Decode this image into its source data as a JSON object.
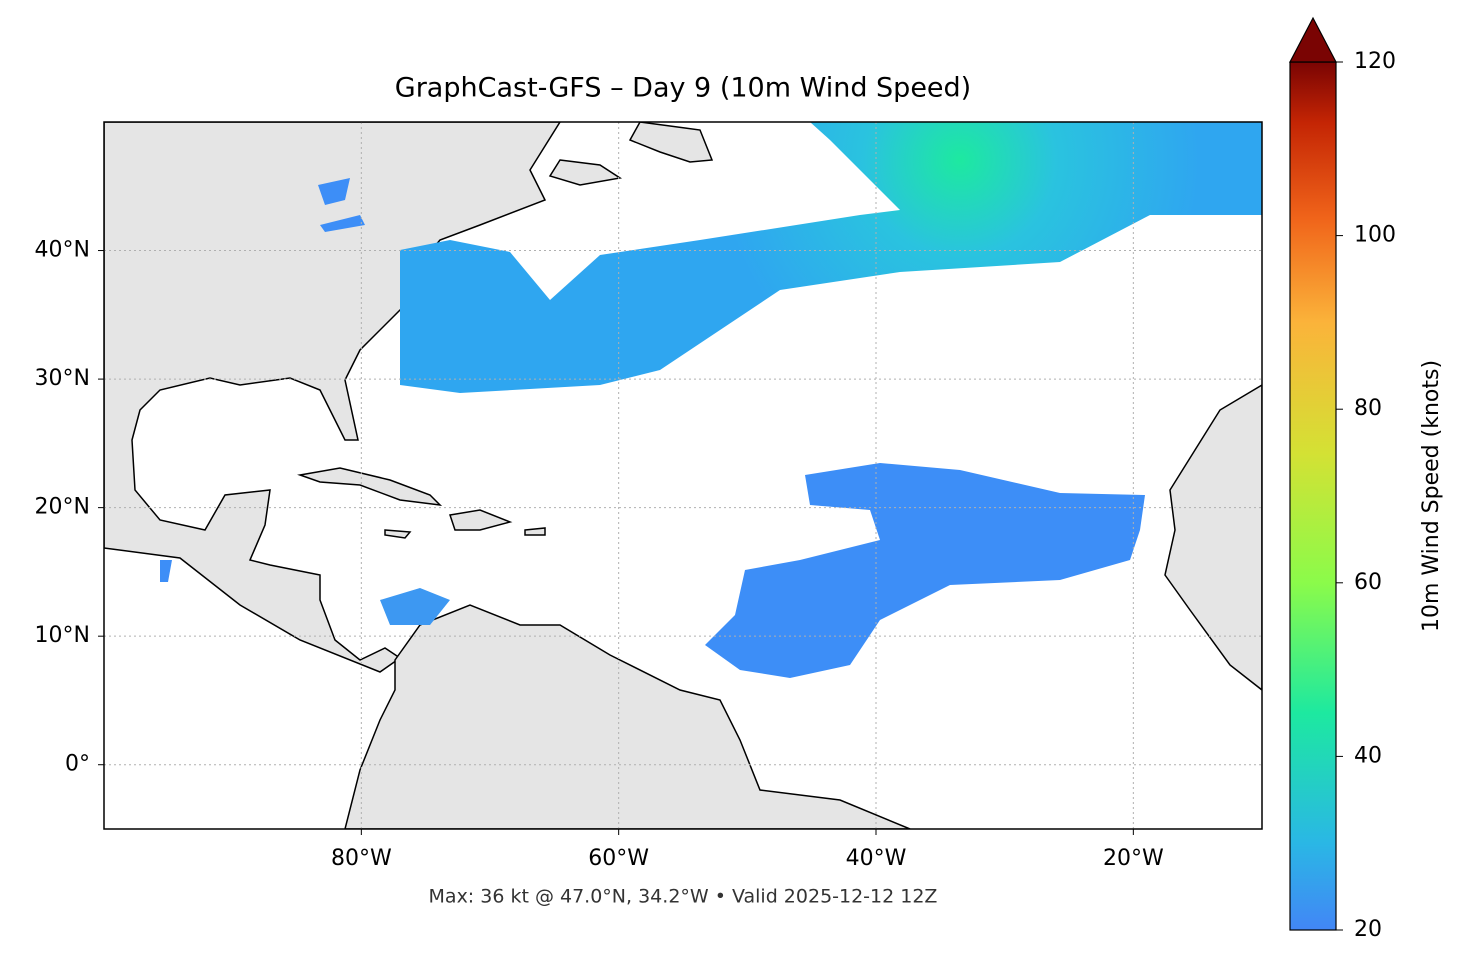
{
  "title": "GraphCast-GFS – Day 9 (10m Wind Speed)",
  "footnote": "Max: 36 kt @ 47.0°N, 34.2°W • Valid 2025-12-12 12Z",
  "map": {
    "xlim": [
      -100,
      -10
    ],
    "ylim": [
      -5,
      50
    ],
    "xticks": [
      {
        "value": -80,
        "label": "80°W"
      },
      {
        "value": -60,
        "label": "60°W"
      },
      {
        "value": -40,
        "label": "40°W"
      },
      {
        "value": -20,
        "label": "20°W"
      }
    ],
    "yticks": [
      {
        "value": 0,
        "label": "0°"
      },
      {
        "value": 10,
        "label": "10°N"
      },
      {
        "value": 20,
        "label": "20°N"
      },
      {
        "value": 30,
        "label": "30°N"
      },
      {
        "value": 40,
        "label": "40°N"
      }
    ],
    "grid": true
  },
  "colorbar": {
    "label": "10m Wind Speed (knots)",
    "lim": [
      20,
      120
    ],
    "ticks": [
      20,
      40,
      60,
      80,
      100,
      120
    ],
    "extend": "max"
  }
}
